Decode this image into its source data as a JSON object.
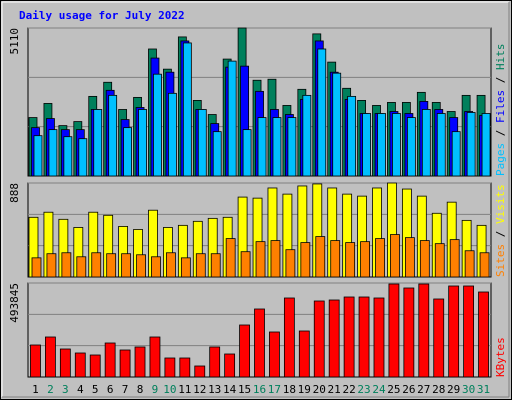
{
  "chart_data": [
    {
      "type": "bar",
      "title": "Daily usage for July 2022",
      "ylim": [
        0,
        5110
      ],
      "yticks": [
        5110
      ],
      "grid_divisions": 3,
      "legend_separator": " / ",
      "series": [
        {
          "name": "Hits",
          "color": "#00805c",
          "values": [
            2018,
            2505,
            1740,
            1879,
            2749,
            3236,
            2297,
            2714,
            4385,
            3689,
            4802,
            2610,
            2123,
            4037,
            5110,
            3306,
            3341,
            2436,
            2993,
            4907,
            3932,
            3028,
            2610,
            2436,
            2540,
            2540,
            2888,
            2540,
            2227,
            2784,
            2784
          ]
        },
        {
          "name": "Files",
          "color": "#0000ff",
          "values": [
            1670,
            1984,
            1601,
            1601,
            2297,
            2958,
            1949,
            2366,
            4072,
            3584,
            4663,
            2297,
            1810,
            3758,
            3793,
            2923,
            2297,
            2123,
            2645,
            4663,
            3584,
            2645,
            2158,
            2158,
            2227,
            2158,
            2575,
            2297,
            2018,
            2227,
            2088
          ]
        },
        {
          "name": "Pages",
          "color": "#00c0ff",
          "values": [
            1392,
            1601,
            1357,
            1288,
            2297,
            2784,
            1670,
            2297,
            3515,
            2854,
            4594,
            2297,
            1531,
            3967,
            1601,
            2018,
            2018,
            2018,
            2784,
            4385,
            3550,
            2749,
            2158,
            2158,
            2158,
            2018,
            2297,
            2158,
            1531,
            2193,
            2158
          ]
        }
      ]
    },
    {
      "type": "bar",
      "ylim": [
        0,
        888
      ],
      "yticks": [
        888
      ],
      "grid_divisions": 3,
      "legend_separator": " / ",
      "series": [
        {
          "name": "Visits",
          "color": "#ffff00",
          "values": [
            564,
            612,
            545,
            468,
            612,
            583,
            478,
            449,
            631,
            468,
            488,
            526,
            554,
            564,
            755,
            745,
            841,
            783,
            860,
            879,
            841,
            783,
            764,
            841,
            888,
            831,
            764,
            602,
            707,
            535,
            488
          ]
        },
        {
          "name": "Sites",
          "color": "#ff8000",
          "values": [
            181,
            220,
            229,
            191,
            229,
            220,
            220,
            210,
            191,
            229,
            181,
            220,
            220,
            363,
            239,
            334,
            344,
            258,
            325,
            382,
            344,
            325,
            334,
            363,
            401,
            372,
            344,
            315,
            353,
            248,
            229
          ]
        }
      ]
    },
    {
      "type": "bar",
      "ylim": [
        0,
        493845
      ],
      "yticks": [
        493845
      ],
      "grid_divisions": 3,
      "categories": [
        "1",
        "2",
        "3",
        "4",
        "5",
        "6",
        "7",
        "8",
        "9",
        "10",
        "11",
        "12",
        "13",
        "14",
        "15",
        "16",
        "17",
        "18",
        "19",
        "20",
        "21",
        "22",
        "23",
        "24",
        "25",
        "26",
        "27",
        "28",
        "29",
        "30",
        "31"
      ],
      "category_colors": [
        "#000000",
        "#00805c",
        "#00805c",
        "#000000",
        "#000000",
        "#000000",
        "#000000",
        "#000000",
        "#00805c",
        "#00805c",
        "#000000",
        "#000000",
        "#000000",
        "#000000",
        "#000000",
        "#00805c",
        "#00805c",
        "#000000",
        "#000000",
        "#000000",
        "#000000",
        "#000000",
        "#00805c",
        "#00805c",
        "#000000",
        "#000000",
        "#000000",
        "#000000",
        "#000000",
        "#00805c",
        "#00805c"
      ],
      "series": [
        {
          "name": "KBytes",
          "color": "#ff0000",
          "values": [
            168128,
            210160,
            147112,
            126096,
            115588,
            178636,
            141858,
            157620,
            210160,
            99826,
            99826,
            57794,
            157620,
            120842,
            273208,
            357276,
            236430,
            415072,
            241684,
            399310,
            404564,
            420326,
            420326,
            415072,
            488591,
            467606,
            488591,
            409818,
            478098,
            478098,
            446574
          ]
        }
      ]
    }
  ]
}
